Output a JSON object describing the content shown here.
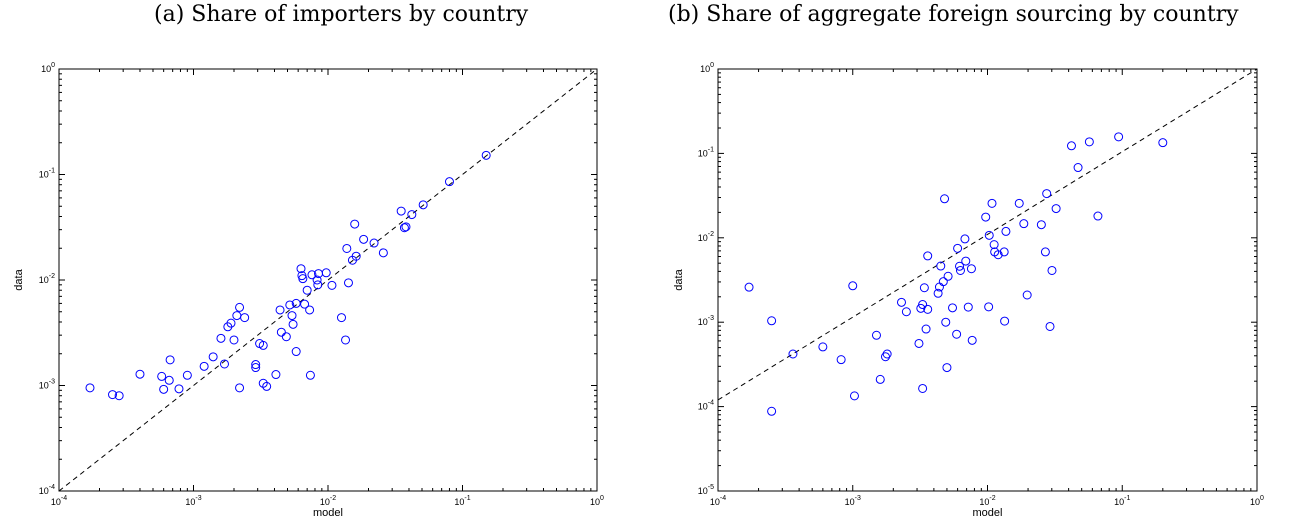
{
  "chart_data": [
    {
      "type": "scatter",
      "title": "(a) Share of importers by country",
      "xlabel": "model",
      "ylabel": "data",
      "xscale": "log",
      "yscale": "log",
      "xlim": [
        0.0001,
        1
      ],
      "ylim": [
        0.0001,
        1
      ],
      "x_ticks": [
        0.0001,
        0.001,
        0.01,
        0.1,
        1
      ],
      "y_ticks": [
        0.0001,
        0.001,
        0.01,
        0.1,
        1
      ],
      "x_tick_labels": [
        {
          "base": "10",
          "exp": "-4"
        },
        {
          "base": "10",
          "exp": "-3"
        },
        {
          "base": "10",
          "exp": "-2"
        },
        {
          "base": "10",
          "exp": "-1"
        },
        {
          "base": "10",
          "exp": "0"
        }
      ],
      "y_tick_labels": [
        {
          "base": "10",
          "exp": "-4"
        },
        {
          "base": "10",
          "exp": "-3"
        },
        {
          "base": "10",
          "exp": "-2"
        },
        {
          "base": "10",
          "exp": "-1"
        },
        {
          "base": "10",
          "exp": "0"
        }
      ],
      "grid": false,
      "marker_color": "#0000ff",
      "reference_line": {
        "style": "dashed",
        "color": "#000000",
        "from": [
          0.0001,
          0.0001
        ],
        "to": [
          1,
          1
        ]
      },
      "points": [
        [
          0.00017,
          0.00095
        ],
        [
          0.00025,
          0.00082
        ],
        [
          0.00028,
          0.0008
        ],
        [
          0.0004,
          0.00128
        ],
        [
          0.00058,
          0.00122
        ],
        [
          0.0006,
          0.00092
        ],
        [
          0.00066,
          0.00112
        ],
        [
          0.00067,
          0.00175
        ],
        [
          0.00078,
          0.00093
        ],
        [
          0.0009,
          0.00125
        ],
        [
          0.0012,
          0.00152
        ],
        [
          0.0014,
          0.00187
        ],
        [
          0.0016,
          0.0028
        ],
        [
          0.0017,
          0.0016
        ],
        [
          0.0018,
          0.0036
        ],
        [
          0.0019,
          0.0039
        ],
        [
          0.002,
          0.0027
        ],
        [
          0.0021,
          0.0046
        ],
        [
          0.0022,
          0.0055
        ],
        [
          0.0022,
          0.00095
        ],
        [
          0.0024,
          0.0044
        ],
        [
          0.0029,
          0.00158
        ],
        [
          0.0029,
          0.00148
        ],
        [
          0.0031,
          0.0025
        ],
        [
          0.0033,
          0.0024
        ],
        [
          0.0033,
          0.00105
        ],
        [
          0.0035,
          0.00098
        ],
        [
          0.0041,
          0.00127
        ],
        [
          0.0044,
          0.0052
        ],
        [
          0.0045,
          0.0032
        ],
        [
          0.0049,
          0.0029
        ],
        [
          0.0052,
          0.0058
        ],
        [
          0.0054,
          0.0046
        ],
        [
          0.0055,
          0.0038
        ],
        [
          0.0058,
          0.006
        ],
        [
          0.0058,
          0.0021
        ],
        [
          0.0063,
          0.0128
        ],
        [
          0.0064,
          0.011
        ],
        [
          0.0065,
          0.0103
        ],
        [
          0.0067,
          0.0059
        ],
        [
          0.007,
          0.008
        ],
        [
          0.0073,
          0.0052
        ],
        [
          0.0074,
          0.00125
        ],
        [
          0.0076,
          0.0112
        ],
        [
          0.0083,
          0.01
        ],
        [
          0.0084,
          0.009
        ],
        [
          0.0085,
          0.0115
        ],
        [
          0.0097,
          0.0117
        ],
        [
          0.0107,
          0.0089
        ],
        [
          0.0126,
          0.0044
        ],
        [
          0.0135,
          0.0027
        ],
        [
          0.0138,
          0.0199
        ],
        [
          0.0142,
          0.0094
        ],
        [
          0.0152,
          0.0154
        ],
        [
          0.0158,
          0.0339
        ],
        [
          0.0162,
          0.0168
        ],
        [
          0.0184,
          0.0243
        ],
        [
          0.022,
          0.0224
        ],
        [
          0.0258,
          0.0181
        ],
        [
          0.035,
          0.045
        ],
        [
          0.037,
          0.0313
        ],
        [
          0.038,
          0.0319
        ],
        [
          0.042,
          0.0417
        ],
        [
          0.051,
          0.0516
        ],
        [
          0.08,
          0.0855
        ],
        [
          0.15,
          0.152
        ]
      ]
    },
    {
      "type": "scatter",
      "title": "(b) Share of aggregate foreign sourcing by country",
      "xlabel": "model",
      "ylabel": "data",
      "xscale": "log",
      "yscale": "log",
      "xlim": [
        0.0001,
        1
      ],
      "ylim": [
        1e-05,
        1
      ],
      "x_ticks": [
        0.0001,
        0.001,
        0.01,
        0.1,
        1
      ],
      "y_ticks": [
        1e-05,
        0.0001,
        0.001,
        0.01,
        0.1,
        1
      ],
      "x_tick_labels": [
        {
          "base": "10",
          "exp": "-4"
        },
        {
          "base": "10",
          "exp": "-3"
        },
        {
          "base": "10",
          "exp": "-2"
        },
        {
          "base": "10",
          "exp": "-1"
        },
        {
          "base": "10",
          "exp": "0"
        }
      ],
      "y_tick_labels": [
        {
          "base": "10",
          "exp": "-5"
        },
        {
          "base": "10",
          "exp": "-4"
        },
        {
          "base": "10",
          "exp": "-3"
        },
        {
          "base": "10",
          "exp": "-2"
        },
        {
          "base": "10",
          "exp": "-1"
        },
        {
          "base": "10",
          "exp": "0"
        }
      ],
      "grid": false,
      "marker_color": "#0000ff",
      "reference_line": {
        "style": "dashed",
        "color": "#000000",
        "from": [
          0.0001,
          0.00012
        ],
        "to": [
          1,
          1
        ]
      },
      "points": [
        [
          0.00017,
          0.0026
        ],
        [
          0.00025,
          0.00104
        ],
        [
          0.00025,
          8.8e-05
        ],
        [
          0.00036,
          0.00042
        ],
        [
          0.0006,
          0.00051
        ],
        [
          0.00082,
          0.00036
        ],
        [
          0.001,
          0.0027
        ],
        [
          0.00103,
          0.000134
        ],
        [
          0.0015,
          0.0007
        ],
        [
          0.0016,
          0.00021
        ],
        [
          0.00175,
          0.00039
        ],
        [
          0.0018,
          0.00042
        ],
        [
          0.0023,
          0.00172
        ],
        [
          0.0025,
          0.00133
        ],
        [
          0.0031,
          0.00056
        ],
        [
          0.0032,
          0.00146
        ],
        [
          0.0033,
          0.00162
        ],
        [
          0.0033,
          0.000164
        ],
        [
          0.0034,
          0.00256
        ],
        [
          0.0035,
          0.00083
        ],
        [
          0.0036,
          0.00142
        ],
        [
          0.0036,
          0.0061
        ],
        [
          0.0043,
          0.0022
        ],
        [
          0.0044,
          0.00261
        ],
        [
          0.0045,
          0.00463
        ],
        [
          0.0047,
          0.00302
        ],
        [
          0.0048,
          0.029
        ],
        [
          0.0049,
          0.001
        ],
        [
          0.005,
          0.00029
        ],
        [
          0.0051,
          0.0035
        ],
        [
          0.0055,
          0.00148
        ],
        [
          0.0059,
          0.00072
        ],
        [
          0.006,
          0.0075
        ],
        [
          0.0062,
          0.0046
        ],
        [
          0.0063,
          0.0041
        ],
        [
          0.0068,
          0.0097
        ],
        [
          0.0069,
          0.0053
        ],
        [
          0.0072,
          0.00151
        ],
        [
          0.0076,
          0.0043
        ],
        [
          0.0077,
          0.00061
        ],
        [
          0.0097,
          0.0176
        ],
        [
          0.0102,
          0.00152
        ],
        [
          0.0103,
          0.0107
        ],
        [
          0.0108,
          0.0256
        ],
        [
          0.0112,
          0.0083
        ],
        [
          0.0113,
          0.0068
        ],
        [
          0.012,
          0.0063
        ],
        [
          0.0133,
          0.0068
        ],
        [
          0.0134,
          0.00103
        ],
        [
          0.0137,
          0.0119
        ],
        [
          0.0172,
          0.0256
        ],
        [
          0.0186,
          0.0147
        ],
        [
          0.0197,
          0.0021
        ],
        [
          0.0251,
          0.0143
        ],
        [
          0.0269,
          0.0068
        ],
        [
          0.0275,
          0.0334
        ],
        [
          0.0291,
          0.00089
        ],
        [
          0.0301,
          0.0041
        ],
        [
          0.0323,
          0.0222
        ],
        [
          0.042,
          0.123
        ],
        [
          0.047,
          0.068
        ],
        [
          0.057,
          0.137
        ],
        [
          0.066,
          0.0181
        ],
        [
          0.094,
          0.157
        ],
        [
          0.2,
          0.134
        ]
      ]
    }
  ]
}
